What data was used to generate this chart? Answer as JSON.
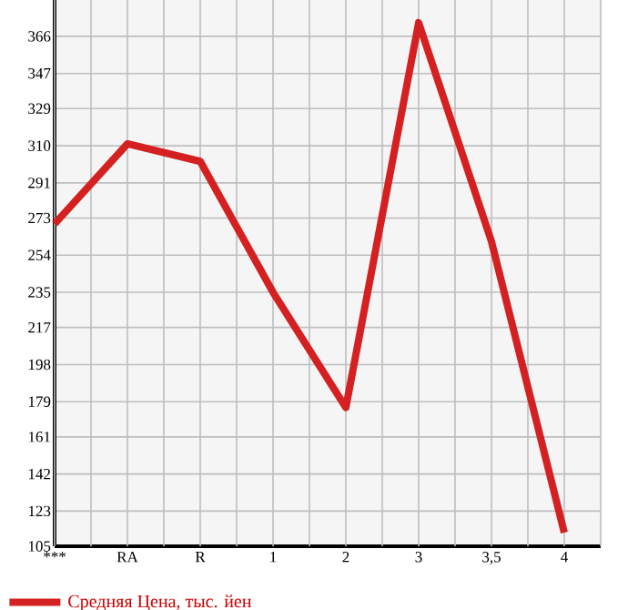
{
  "chart_data": {
    "type": "line",
    "categories": [
      "***",
      "RA",
      "R",
      "1",
      "2",
      "3",
      "3,5",
      "4"
    ],
    "series": [
      {
        "name": "Средняя Цена, тыс. йен",
        "color": "#d42020",
        "values": [
          270,
          311,
          302,
          235,
          176,
          373,
          261,
          112
        ]
      }
    ],
    "ylim": [
      105,
      384.6
    ],
    "yticks": [
      105,
      123,
      142,
      161,
      179,
      198,
      217,
      235,
      254,
      273,
      291,
      310,
      329,
      347,
      366
    ],
    "grid": true,
    "legend": "bottom left",
    "marker": "none",
    "line_style": "solid"
  }
}
